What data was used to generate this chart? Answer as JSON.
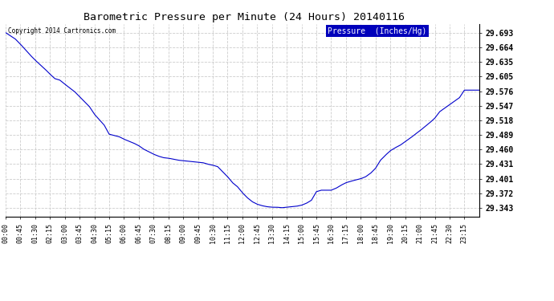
{
  "title": "Barometric Pressure per Minute (24 Hours) 20140116",
  "copyright": "Copyright 2014 Cartronics.com",
  "legend_label": "Pressure  (Inches/Hg)",
  "background_color": "#ffffff",
  "plot_background_color": "#ffffff",
  "line_color": "#0000cc",
  "grid_color": "#cccccc",
  "yticks": [
    29.343,
    29.372,
    29.401,
    29.431,
    29.46,
    29.489,
    29.518,
    29.547,
    29.576,
    29.605,
    29.635,
    29.664,
    29.693
  ],
  "ylim": [
    29.325,
    29.71
  ],
  "xtick_labels": [
    "00:00",
    "00:45",
    "01:30",
    "02:15",
    "03:00",
    "03:45",
    "04:30",
    "05:15",
    "06:00",
    "06:45",
    "07:30",
    "08:15",
    "09:00",
    "09:45",
    "10:30",
    "11:15",
    "12:00",
    "12:45",
    "13:30",
    "14:15",
    "15:00",
    "15:45",
    "16:30",
    "17:15",
    "18:00",
    "18:45",
    "19:30",
    "20:15",
    "21:00",
    "21:45",
    "22:30",
    "23:15"
  ],
  "key_x_values": {
    "00:00": 29.693,
    "00:30": 29.68,
    "00:45": 29.67,
    "01:15": 29.648,
    "01:30": 29.638,
    "02:00": 29.62,
    "02:15": 29.61,
    "02:30": 29.601,
    "02:45": 29.598,
    "03:00": 29.59,
    "03:30": 29.575,
    "03:45": 29.565,
    "04:15": 29.545,
    "04:30": 29.53,
    "05:00": 29.508,
    "05:15": 29.49,
    "05:45": 29.485,
    "06:00": 29.48,
    "06:30": 29.472,
    "06:45": 29.467,
    "07:00": 29.46,
    "07:15": 29.455,
    "07:30": 29.45,
    "07:45": 29.446,
    "08:00": 29.443,
    "08:15": 29.442,
    "08:30": 29.44,
    "08:45": 29.438,
    "09:00": 29.437,
    "09:15": 29.436,
    "09:30": 29.435,
    "09:45": 29.434,
    "10:00": 29.433,
    "10:15": 29.43,
    "10:30": 29.428,
    "10:45": 29.425,
    "11:00": 29.415,
    "11:15": 29.405,
    "11:30": 29.393,
    "11:45": 29.385,
    "12:00": 29.373,
    "12:15": 29.363,
    "12:30": 29.355,
    "12:45": 29.35,
    "13:00": 29.347,
    "13:15": 29.345,
    "13:30": 29.344,
    "13:45": 29.344,
    "14:00": 29.343,
    "14:15": 29.344,
    "14:30": 29.345,
    "14:45": 29.346,
    "15:00": 29.348,
    "15:15": 29.352,
    "15:30": 29.358,
    "15:45": 29.375,
    "16:00": 29.378,
    "16:15": 29.378,
    "16:30": 29.378,
    "16:45": 29.382,
    "17:00": 29.388,
    "17:15": 29.393,
    "17:30": 29.396,
    "18:00": 29.401,
    "18:15": 29.405,
    "18:30": 29.412,
    "18:45": 29.422,
    "19:00": 29.438,
    "19:15": 29.448,
    "19:30": 29.457,
    "19:45": 29.463,
    "20:00": 29.468,
    "20:15": 29.475,
    "20:30": 29.482,
    "21:00": 29.497,
    "21:15": 29.505,
    "21:30": 29.513,
    "21:45": 29.522,
    "22:00": 29.535,
    "22:15": 29.542,
    "22:30": 29.549,
    "22:45": 29.556,
    "23:00": 29.563,
    "23:15": 29.578
  }
}
